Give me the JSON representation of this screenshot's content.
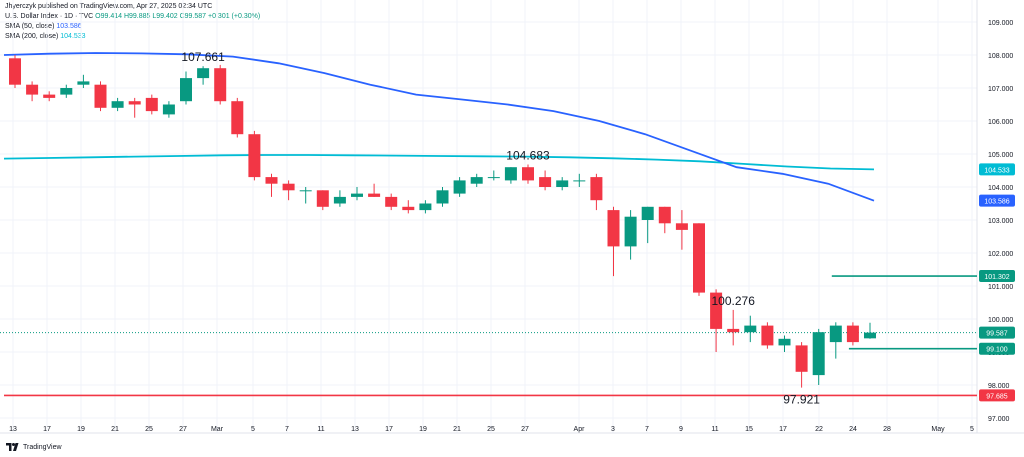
{
  "header": {
    "published": "Jhyerczyk published on TradingView.com, Apr 27, 2025 02:34 UTC",
    "symbol": "U.S. Dollar Index · 1D · TVC",
    "ohlc": "O99.414 H99.885 L99.402 C99.587 +0.301 (+0.30%)",
    "sma50_label": "SMA (50, close)",
    "sma50_value": "103.586",
    "sma200_label": "SMA (200, close)",
    "sma200_value": "104.533"
  },
  "footer": {
    "brand": "TradingView"
  },
  "colors": {
    "up": "#089981",
    "down": "#f23645",
    "sma50": "#2962ff",
    "sma200": "#00bcd4",
    "support": "#f23645",
    "resistance": "#089981",
    "current": "#089981",
    "grid": "#f0f3fa",
    "text": "#131722"
  },
  "chart_data": {
    "type": "candlestick",
    "ylim": [
      96.8,
      109.2
    ],
    "yticks": [
      97,
      98,
      99,
      100,
      101,
      102,
      103,
      104,
      105,
      106,
      107,
      108,
      109
    ],
    "ytick_labels": [
      "97.000",
      "98.000",
      "99.000",
      "100.000",
      "101.000",
      "102.000",
      "103.000",
      "104.000",
      "105.000",
      "106.000",
      "107.000",
      "108.000",
      "109.000"
    ],
    "xticks": [
      "13",
      "17",
      "19",
      "21",
      "25",
      "27",
      "Mar",
      "5",
      "7",
      "11",
      "13",
      "17",
      "19",
      "21",
      "25",
      "27",
      "Apr",
      "3",
      "7",
      "9",
      "11",
      "15",
      "17",
      "22",
      "24",
      "28",
      "May",
      "5"
    ],
    "candles": [
      {
        "o": 107.9,
        "h": 108.0,
        "l": 107.0,
        "c": 107.1
      },
      {
        "o": 107.1,
        "h": 107.2,
        "l": 106.6,
        "c": 106.8
      },
      {
        "o": 106.8,
        "h": 106.9,
        "l": 106.6,
        "c": 106.7
      },
      {
        "o": 106.8,
        "h": 107.1,
        "l": 106.7,
        "c": 107.0
      },
      {
        "o": 107.1,
        "h": 107.4,
        "l": 107.0,
        "c": 107.2
      },
      {
        "o": 107.1,
        "h": 107.2,
        "l": 106.3,
        "c": 106.4
      },
      {
        "o": 106.4,
        "h": 106.7,
        "l": 106.3,
        "c": 106.6
      },
      {
        "o": 106.6,
        "h": 106.7,
        "l": 106.1,
        "c": 106.5
      },
      {
        "o": 106.7,
        "h": 106.8,
        "l": 106.2,
        "c": 106.3
      },
      {
        "o": 106.2,
        "h": 106.6,
        "l": 106.1,
        "c": 106.5
      },
      {
        "o": 106.6,
        "h": 107.5,
        "l": 106.5,
        "c": 107.3
      },
      {
        "o": 107.3,
        "h": 107.661,
        "l": 107.1,
        "c": 107.6
      },
      {
        "o": 107.6,
        "h": 107.7,
        "l": 106.5,
        "c": 106.6
      },
      {
        "o": 106.6,
        "h": 106.7,
        "l": 105.5,
        "c": 105.6
      },
      {
        "o": 105.6,
        "h": 105.7,
        "l": 104.2,
        "c": 104.3
      },
      {
        "o": 104.3,
        "h": 104.4,
        "l": 103.7,
        "c": 104.1
      },
      {
        "o": 104.1,
        "h": 104.2,
        "l": 103.6,
        "c": 103.9
      },
      {
        "o": 103.9,
        "h": 104.0,
        "l": 103.5,
        "c": 103.9
      },
      {
        "o": 103.9,
        "h": 103.9,
        "l": 103.3,
        "c": 103.4
      },
      {
        "o": 103.5,
        "h": 103.9,
        "l": 103.4,
        "c": 103.7
      },
      {
        "o": 103.7,
        "h": 104.0,
        "l": 103.6,
        "c": 103.8
      },
      {
        "o": 103.8,
        "h": 104.1,
        "l": 103.7,
        "c": 103.7
      },
      {
        "o": 103.7,
        "h": 103.8,
        "l": 103.3,
        "c": 103.4
      },
      {
        "o": 103.4,
        "h": 103.6,
        "l": 103.2,
        "c": 103.3
      },
      {
        "o": 103.3,
        "h": 103.6,
        "l": 103.2,
        "c": 103.5
      },
      {
        "o": 103.5,
        "h": 104.0,
        "l": 103.4,
        "c": 103.9
      },
      {
        "o": 103.8,
        "h": 104.3,
        "l": 103.7,
        "c": 104.2
      },
      {
        "o": 104.1,
        "h": 104.4,
        "l": 104.0,
        "c": 104.3
      },
      {
        "o": 104.3,
        "h": 104.5,
        "l": 104.2,
        "c": 104.3
      },
      {
        "o": 104.2,
        "h": 104.6,
        "l": 104.1,
        "c": 104.6
      },
      {
        "o": 104.6,
        "h": 104.683,
        "l": 104.1,
        "c": 104.2
      },
      {
        "o": 104.3,
        "h": 104.5,
        "l": 103.9,
        "c": 104.0
      },
      {
        "o": 104.0,
        "h": 104.3,
        "l": 103.9,
        "c": 104.2
      },
      {
        "o": 104.2,
        "h": 104.4,
        "l": 104.0,
        "c": 104.2
      },
      {
        "o": 104.3,
        "h": 104.4,
        "l": 103.3,
        "c": 103.6
      },
      {
        "o": 103.3,
        "h": 103.4,
        "l": 101.3,
        "c": 102.2
      },
      {
        "o": 102.2,
        "h": 103.3,
        "l": 101.8,
        "c": 103.1
      },
      {
        "o": 103.0,
        "h": 103.4,
        "l": 102.3,
        "c": 103.4
      },
      {
        "o": 103.4,
        "h": 103.4,
        "l": 102.6,
        "c": 102.9
      },
      {
        "o": 102.9,
        "h": 103.3,
        "l": 102.1,
        "c": 102.7
      },
      {
        "o": 102.9,
        "h": 102.9,
        "l": 100.7,
        "c": 100.8
      },
      {
        "o": 100.8,
        "h": 100.9,
        "l": 99.0,
        "c": 99.7
      },
      {
        "o": 99.7,
        "h": 100.276,
        "l": 99.2,
        "c": 99.6
      },
      {
        "o": 99.6,
        "h": 100.1,
        "l": 99.3,
        "c": 99.8
      },
      {
        "o": 99.8,
        "h": 99.9,
        "l": 99.1,
        "c": 99.2
      },
      {
        "o": 99.2,
        "h": 99.5,
        "l": 99.0,
        "c": 99.4
      },
      {
        "o": 99.2,
        "h": 99.3,
        "l": 97.921,
        "c": 98.4
      },
      {
        "o": 98.3,
        "h": 99.7,
        "l": 98.0,
        "c": 99.6
      },
      {
        "o": 99.3,
        "h": 99.9,
        "l": 98.8,
        "c": 99.8
      },
      {
        "o": 99.8,
        "h": 99.9,
        "l": 99.2,
        "c": 99.3
      },
      {
        "o": 99.414,
        "h": 99.885,
        "l": 99.402,
        "c": 99.587
      }
    ],
    "sma50": [
      108.0,
      108.04,
      108.06,
      108.05,
      108.02,
      107.95,
      107.75,
      107.45,
      107.1,
      106.8,
      106.65,
      106.5,
      106.3,
      106.0,
      105.6,
      105.1,
      104.6,
      104.4,
      104.1,
      103.586
    ],
    "sma200": [
      104.86,
      104.88,
      104.9,
      104.92,
      104.94,
      104.96,
      104.97,
      104.97,
      104.96,
      104.95,
      104.94,
      104.93,
      104.92,
      104.9,
      104.87,
      104.83,
      104.78,
      104.7,
      104.62,
      104.56,
      104.533
    ],
    "annotations": [
      {
        "label": "107.661",
        "candle": 11,
        "pos": "above"
      },
      {
        "label": "104.683",
        "candle": 30,
        "pos": "above"
      },
      {
        "label": "100.276",
        "candle": 42,
        "pos": "above"
      },
      {
        "label": "97.921",
        "candle": 46,
        "pos": "below"
      }
    ],
    "levels": [
      {
        "name": "resistance",
        "value": 101.302,
        "label": "101.302",
        "start_candle": 48
      },
      {
        "name": "support-upper",
        "value": 99.1,
        "label": "99.100",
        "start_candle": 49
      },
      {
        "name": "support-lower",
        "value": 97.685,
        "label": "97.685",
        "start_candle": 0
      }
    ],
    "current": {
      "value": 99.587,
      "label": "99.587"
    },
    "price_labels": {
      "sma200": "104.533",
      "sma50": "103.586"
    }
  }
}
